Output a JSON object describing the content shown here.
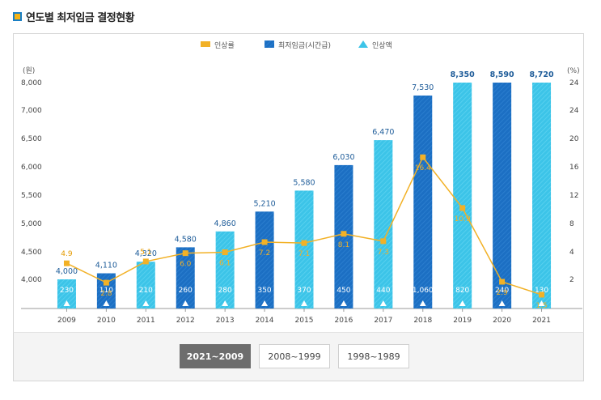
{
  "page": {
    "title": "연도별 최저임금 결정현황"
  },
  "tabs": [
    "2021~2009",
    "2008~1999",
    "1998~1989"
  ],
  "colors": {
    "bar_light": "#3cc4e8",
    "bar_dark": "#1c6fc3",
    "rate_line": "#f2b126",
    "increase": "#ffffff"
  },
  "chart_data": {
    "type": "bar",
    "categories": [
      "2009",
      "2010",
      "2011",
      "2012",
      "2013",
      "2014",
      "2015",
      "2016",
      "2017",
      "2018",
      "2019",
      "2020",
      "2021"
    ],
    "legend": [
      "인상률",
      "최저임금(시간급)",
      "인상액"
    ],
    "left_axis": {
      "unit": "(원)",
      "ticks": [
        "8,000",
        "7,000",
        "6,500",
        "6,000",
        "5,500",
        "5,000",
        "4,500",
        "4,000"
      ]
    },
    "right_axis": {
      "unit": "(%)",
      "ticks": [
        "24",
        "24",
        "20",
        "16",
        "12",
        "8",
        "4",
        "2"
      ]
    },
    "series": [
      {
        "name": "최저임금(시간급)",
        "values": [
          4000,
          4110,
          4320,
          4580,
          4860,
          5210,
          5580,
          6030,
          6470,
          7530,
          8350,
          8590,
          8720
        ],
        "labels": [
          "4,000",
          "4,110",
          "4,320",
          "4,580",
          "4,860",
          "5,210",
          "5,580",
          "6,030",
          "6,470",
          "7,530",
          "8,350",
          "8,590",
          "8,720"
        ]
      },
      {
        "name": "인상액",
        "values": [
          230,
          110,
          210,
          260,
          280,
          350,
          370,
          450,
          440,
          1060,
          820,
          240,
          130
        ],
        "labels": [
          "230",
          "110",
          "210",
          "260",
          "280",
          "350",
          "370",
          "450",
          "440",
          "1,060",
          "820",
          "240",
          "130"
        ]
      },
      {
        "name": "인상률",
        "values": [
          4.9,
          2.8,
          5.1,
          6.0,
          6.1,
          7.2,
          7.1,
          8.1,
          7.3,
          16.4,
          10.9,
          2.9,
          1.5
        ],
        "labels": [
          "4.9",
          "2.8",
          "5.1",
          "6.0",
          "6.1",
          "7.2",
          "7.1",
          "8.1",
          "7.3",
          "16.4",
          "10.9",
          "2.9",
          "1.5"
        ]
      }
    ]
  }
}
